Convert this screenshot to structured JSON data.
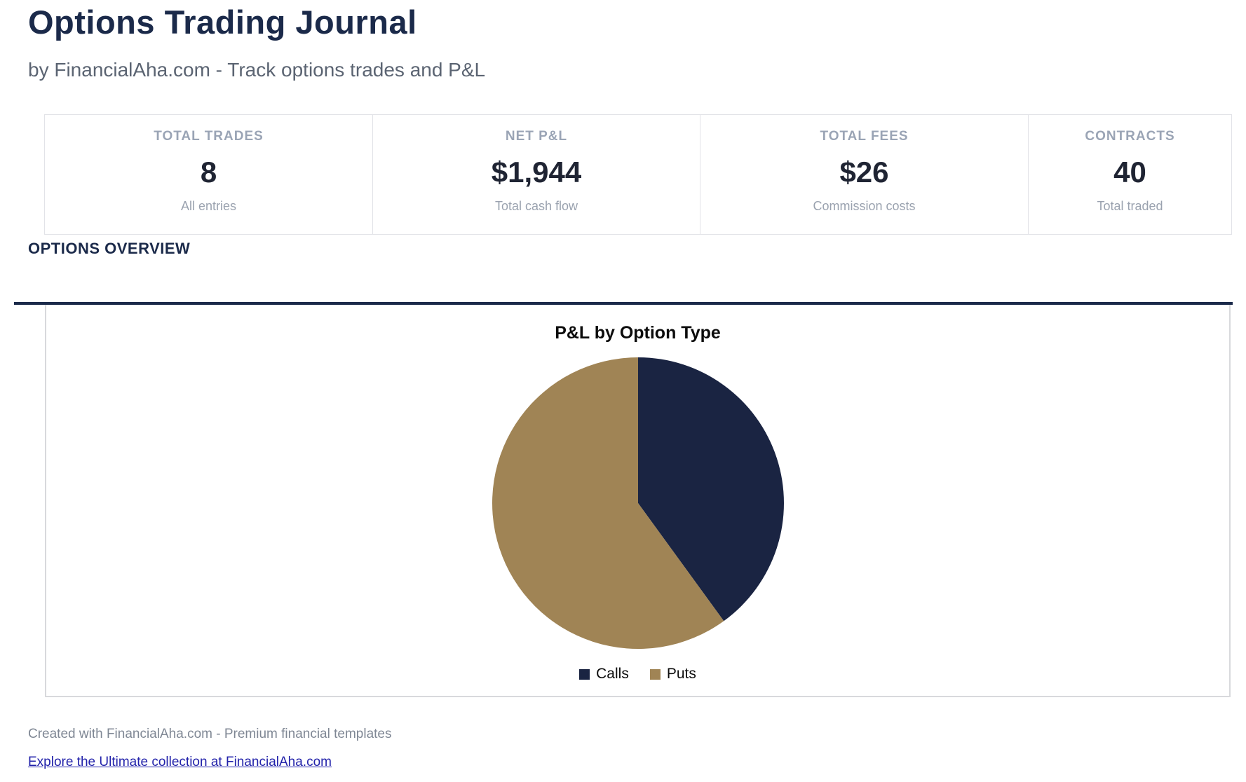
{
  "page": {
    "title": "Options Trading Journal",
    "subtitle": "by FinancialAha.com - Track options trades and P&L"
  },
  "stats": {
    "cards": [
      {
        "label": "TOTAL TRADES",
        "value": "8",
        "sublabel": "All entries"
      },
      {
        "label": "NET P&L",
        "value": "$1,944",
        "sublabel": "Total cash flow"
      },
      {
        "label": "TOTAL FEES",
        "value": "$26",
        "sublabel": "Commission costs"
      },
      {
        "label": "CONTRACTS",
        "value": "40",
        "sublabel": "Total traded"
      }
    ]
  },
  "section": {
    "heading": "OPTIONS OVERVIEW"
  },
  "chart_data": {
    "type": "pie",
    "title": "P&L by Option Type",
    "labels": [
      "Calls",
      "Puts"
    ],
    "values_percent": [
      40,
      60
    ],
    "colors": [
      "#1a2442",
      "#a08455"
    ],
    "start_angle_deg": 0,
    "direction": "clockwise",
    "legend_position": "bottom",
    "note_total_net_pl": "$1,944"
  },
  "footer": {
    "credit": "Created with FinancialAha.com - Premium financial templates",
    "link_text": "Explore the Ultimate collection at FinancialAha.com"
  },
  "colors": {
    "heading_navy": "#1b2a4a",
    "value_text": "#1f2433",
    "muted_label": "#9aa4b5",
    "link_blue": "#2222aa",
    "card_border": "#e2e3e8",
    "panel_border": "#d8d9dc"
  }
}
